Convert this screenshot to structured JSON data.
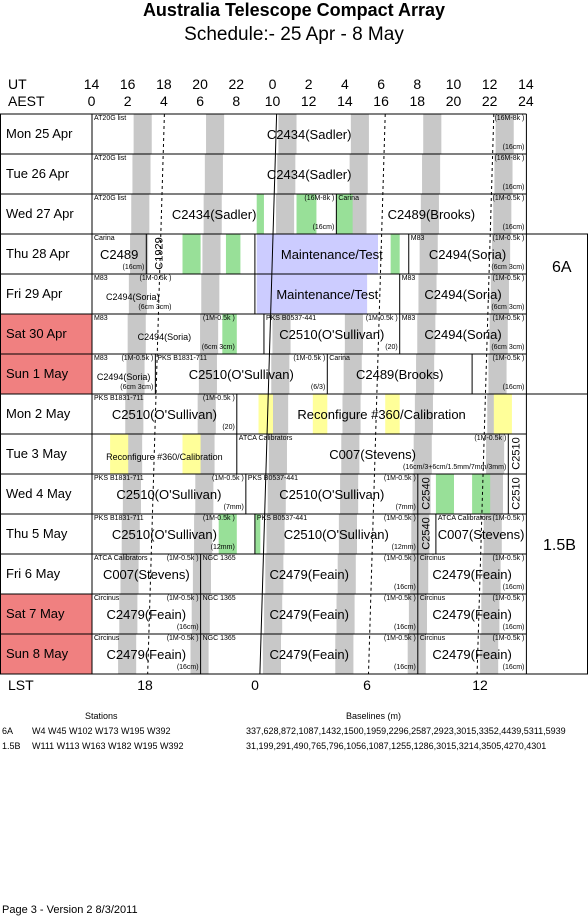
{
  "header": {
    "title": "Australia Telescope Compact Array",
    "subtitle": "Schedule:- 25 Apr - 8  May"
  },
  "axes": {
    "ut_label": "UT",
    "aest_label": "AEST",
    "lst_label": "LST",
    "ut_ticks": [
      "14",
      "16",
      "18",
      "20",
      "22",
      "0",
      "2",
      "4",
      "6",
      "8",
      "10",
      "12",
      "14"
    ],
    "aest_ticks": [
      "0",
      "2",
      "4",
      "6",
      "8",
      "10",
      "12",
      "14",
      "16",
      "18",
      "20",
      "22",
      "24"
    ],
    "lst_ticks": [
      "18",
      "0",
      "6",
      "12"
    ]
  },
  "days": [
    {
      "label": "Mon   25 Apr",
      "weekend": false
    },
    {
      "label": "Tue   26 Apr",
      "weekend": false
    },
    {
      "label": "Wed  27 Apr",
      "weekend": false
    },
    {
      "label": "Thu   28 Apr",
      "weekend": false
    },
    {
      "label": "Fri    29 Apr",
      "weekend": false
    },
    {
      "label": "Sat   30 Apr",
      "weekend": true
    },
    {
      "label": "Sun   1  May",
      "weekend": true
    },
    {
      "label": "Mon   2  May",
      "weekend": false
    },
    {
      "label": "Tue   3  May",
      "weekend": false
    },
    {
      "label": "Wed  4  May",
      "weekend": false
    },
    {
      "label": "Thu   5  May",
      "weekend": false
    },
    {
      "label": "Fri    6  May",
      "weekend": false
    },
    {
      "label": "Sat    7  May",
      "weekend": true
    },
    {
      "label": "Sun   8  May",
      "weekend": true
    }
  ],
  "configs": [
    "6A",
    "1.5B"
  ],
  "blocks": [
    {
      "row": 0,
      "t0": 0,
      "t1": 24,
      "main": "C2434(Sadler)",
      "tl": "AT20G list",
      "tr": "(16M-8k )",
      "br": "(16cm)"
    },
    {
      "row": 1,
      "t0": 0,
      "t1": 24,
      "main": "C2434(Sadler)",
      "tl": "AT20G list",
      "tr": "(16M-8k )",
      "br": "(16cm)"
    },
    {
      "row": 2,
      "t0": 0,
      "t1": 13.5,
      "main": "C2434(Sadler)",
      "tl": "AT20G list",
      "tr": "(16M-8k )",
      "br": "(16cm)"
    },
    {
      "row": 2,
      "t0": 13.5,
      "t1": 24,
      "main": "C2489(Brooks)",
      "tl": "Carina",
      "tr": "(1M-0.5k )",
      "br": "(16cm)"
    },
    {
      "row": 3,
      "t0": 0,
      "t1": 3,
      "main": "C2489",
      "tl": "Carina",
      "tr": "",
      "br": "(16cm)"
    },
    {
      "row": 3,
      "t0": 3,
      "t1": 4.5,
      "main": "C1929",
      "tl": "",
      "tr": "",
      "br": "",
      "vertical": true
    },
    {
      "row": 3,
      "t0": 9,
      "t1": 17.5,
      "main": "Maintenance/Test",
      "tl": "",
      "tr": "",
      "br": ""
    },
    {
      "row": 3,
      "t0": 17.5,
      "t1": 24,
      "main": "C2494(Soria)",
      "tl": "M83",
      "tr": "(1M-0.5k )",
      "br": "(6cm 3cm)"
    },
    {
      "row": 4,
      "t0": 0,
      "t1": 4.5,
      "main": "C2494(Soria)",
      "tl": "M83",
      "tr": "(1M-0.5k )",
      "br": "(6cm 3cm)",
      "mainSmall": true
    },
    {
      "row": 4,
      "t0": 9,
      "t1": 17,
      "main": "Maintenance/Test",
      "tl": "",
      "tr": "",
      "br": ""
    },
    {
      "row": 4,
      "t0": 17,
      "t1": 24,
      "main": "C2494(Soria)",
      "tl": "M83",
      "tr": "(1M-0.5k )",
      "br": "(6cm 3cm)"
    },
    {
      "row": 5,
      "t0": 0,
      "t1": 8,
      "main": "C2494(Soria)",
      "tl": "M83",
      "tr": "(1M-0.5k )",
      "br": "(6cm 3cm)",
      "mainSmall": true
    },
    {
      "row": 5,
      "t0": 9.5,
      "t1": 17,
      "main": "C2510(O'Sullivan)",
      "tl": "PKS B0537-441",
      "tr": "(1M-0.5k )",
      "br": "(20)"
    },
    {
      "row": 5,
      "t0": 17,
      "t1": 24,
      "main": "C2494(Soria)",
      "tl": "M83",
      "tr": "(1M-0.5k )",
      "br": "(6cm 3cm)"
    },
    {
      "row": 6,
      "t0": 0,
      "t1": 3.5,
      "main": "C2494(Soria)",
      "tl": "M83",
      "tr": "(1M-0.5k )",
      "br": "(6cm 3cm)",
      "mainSmall": true
    },
    {
      "row": 6,
      "t0": 3.5,
      "t1": 13,
      "main": "C2510(O'Sullivan)",
      "tl": "PKS B1831-711",
      "tr": "(1M-0.5k )",
      "br": "(6/3)"
    },
    {
      "row": 6,
      "t0": 13,
      "t1": 21,
      "main": "C2489(Brooks)",
      "tl": "Carina",
      "tr": "",
      "br": ""
    },
    {
      "row": 6,
      "t0": 21,
      "t1": 24,
      "main": "",
      "tl": "",
      "tr": "(1M-0.5k )",
      "br": "(16cm)"
    },
    {
      "row": 7,
      "t0": 0,
      "t1": 8,
      "main": "C2510(O'Sullivan)",
      "tl": "PKS B1831-711",
      "tr": "(1M-0.5k )",
      "br": "(20)"
    },
    {
      "row": 7,
      "t0": 8,
      "t1": 24,
      "main": "Reconfigure #360/Calibration",
      "tl": "",
      "tr": "",
      "br": ""
    },
    {
      "row": 8,
      "t0": 0,
      "t1": 8,
      "main": "Reconfigure #360/Calibration",
      "tl": "",
      "tr": "",
      "br": "",
      "mainSmall": true
    },
    {
      "row": 8,
      "t0": 8,
      "t1": 23,
      "main": "C007(Stevens)",
      "tl": "ATCA Calibrators",
      "tr": "(1M-0.5k )",
      "br": "(16cm/3+6cm/1.5mm/7mm/3mm)"
    },
    {
      "row": 8,
      "t0": 23,
      "t1": 24,
      "main": "C2510",
      "tl": "",
      "tr": "",
      "br": "",
      "vertical": true
    },
    {
      "row": 9,
      "t0": 0,
      "t1": 8.5,
      "main": "C2510(O'Sullivan)",
      "tl": "PKS B1831-711",
      "tr": "(1M-0.5k )",
      "br": "(7mm)"
    },
    {
      "row": 9,
      "t0": 8.5,
      "t1": 18,
      "main": "C2510(O'Sullivan)",
      "tl": "PKS B0537-441",
      "tr": "(1M-0.5k )",
      "br": "(7mm)"
    },
    {
      "row": 9,
      "t0": 18,
      "t1": 19,
      "main": "C2540",
      "tl": "",
      "tr": "",
      "br": "",
      "vertical": true
    },
    {
      "row": 9,
      "t0": 23,
      "t1": 24,
      "main": "C2510",
      "tl": "",
      "tr": "",
      "br": "",
      "vertical": true
    },
    {
      "row": 10,
      "t0": 0,
      "t1": 8,
      "main": "C2510(O'Sullivan)",
      "tl": "PKS B1831-711",
      "tr": "(1M-0.5k )",
      "br": "(12mm)"
    },
    {
      "row": 10,
      "t0": 9,
      "t1": 18,
      "main": "C2510(O'Sullivan)",
      "tl": "PKS B0537-441",
      "tr": "(1M-0.5k )",
      "br": "(12mm)"
    },
    {
      "row": 10,
      "t0": 18,
      "t1": 19,
      "main": "C2540",
      "tl": "",
      "tr": "",
      "br": "",
      "vertical": true
    },
    {
      "row": 10,
      "t0": 19,
      "t1": 24,
      "main": "C007(Stevens)",
      "tl": "ATCA Calibrators",
      "tr": "(1M-0.5k )",
      "br": ""
    },
    {
      "row": 11,
      "t0": 0,
      "t1": 6,
      "main": "C007(Stevens)",
      "tl": "ATCA Calibrators",
      "tr": "(1M-0.5k )",
      "br": ""
    },
    {
      "row": 11,
      "t0": 6,
      "t1": 18,
      "main": "C2479(Feain)",
      "tl": "NGC 1365",
      "tr": "(1M-0.5k )",
      "br": "(16cm)"
    },
    {
      "row": 11,
      "t0": 18,
      "t1": 24,
      "main": "C2479(Feain)",
      "tl": "Circinus",
      "tr": "(1M-0.5k )",
      "br": "(16cm)"
    },
    {
      "row": 12,
      "t0": 0,
      "t1": 6,
      "main": "C2479(Feain)",
      "tl": "Circinus",
      "tr": "(1M-0.5k )",
      "br": "(16cm)"
    },
    {
      "row": 12,
      "t0": 6,
      "t1": 18,
      "main": "C2479(Feain)",
      "tl": "NGC 1365",
      "tr": "(1M-0.5k )",
      "br": "(16cm)"
    },
    {
      "row": 12,
      "t0": 18,
      "t1": 24,
      "main": "C2479(Feain)",
      "tl": "Circinus",
      "tr": "(1M-0.5k )",
      "br": "(16cm)"
    },
    {
      "row": 13,
      "t0": 0,
      "t1": 6,
      "main": "C2479(Feain)",
      "tl": "Circinus",
      "tr": "(1M-0.5k )",
      "br": "(16cm)"
    },
    {
      "row": 13,
      "t0": 6,
      "t1": 18,
      "main": "C2479(Feain)",
      "tl": "NGC 1365",
      "tr": "(1M-0.5k )",
      "br": "(16cm)"
    },
    {
      "row": 13,
      "t0": 18,
      "t1": 24,
      "main": "C2479(Feain)",
      "tl": "Circinus",
      "tr": "(1M-0.5k )",
      "br": "(16cm)"
    }
  ],
  "stations": {
    "header": "Stations",
    "baselines_header": "Baselines (m)",
    "rows": [
      {
        "config": "6A",
        "stations": "W4  W45  W102  W173  W195  W392",
        "baselines": "337,628,872,1087,1432,1500,1959,2296,2587,2923,3015,3352,4439,5311,5939"
      },
      {
        "config": "1.5B",
        "stations": "W111  W113  W163  W182  W195  W392",
        "baselines": "31,199,291,490,765,796,1056,1087,1255,1286,3015,3214,3505,4270,4301"
      }
    ]
  },
  "footer": "Page 3 - Version 2  8/3/2011",
  "colors": {
    "grey": "#c8c8c8",
    "green": "#98e098",
    "yellow": "#ffff99",
    "blue": "#ccccff",
    "weekend": "#f08080"
  }
}
